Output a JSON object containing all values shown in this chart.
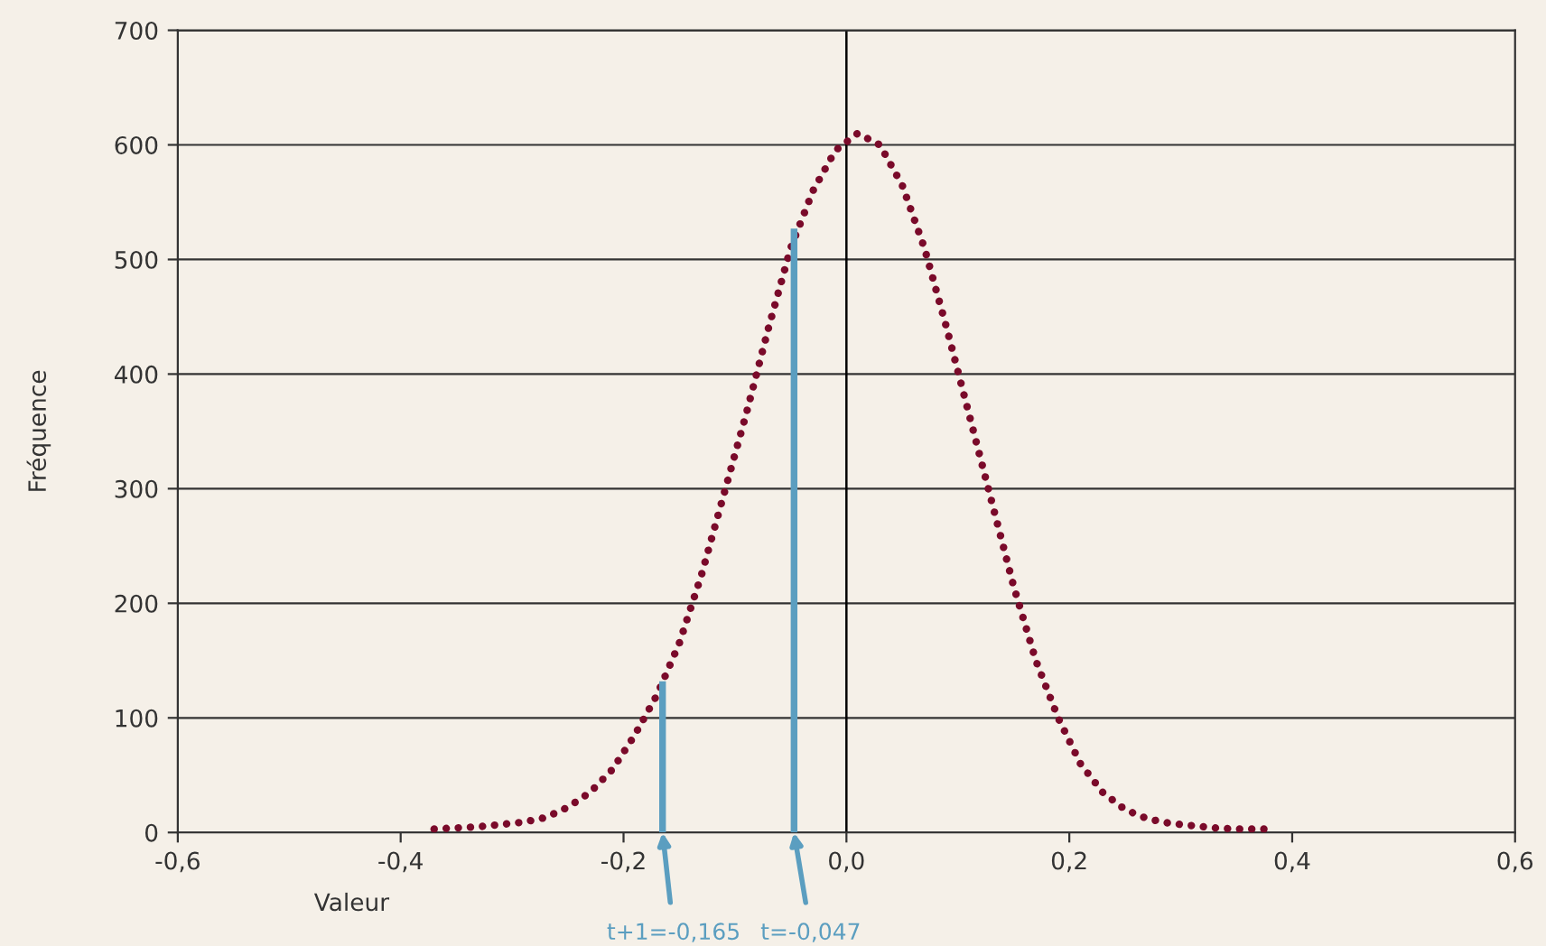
{
  "chart_data": {
    "type": "line",
    "xlabel": "Valeur",
    "ylabel": "Fréquence",
    "xlim": [
      -0.6,
      0.6
    ],
    "ylim": [
      0,
      700
    ],
    "xticks": [
      {
        "value": -0.6,
        "label": "-0,6"
      },
      {
        "value": -0.4,
        "label": "-0,4"
      },
      {
        "value": -0.2,
        "label": "-0,2"
      },
      {
        "value": 0,
        "label": "0,0"
      },
      {
        "value": 0.2,
        "label": "0,2"
      },
      {
        "value": 0.4,
        "label": "0,4"
      },
      {
        "value": 0.6,
        "label": "0,6"
      }
    ],
    "yticks": [
      0,
      100,
      200,
      300,
      400,
      500,
      600,
      700
    ],
    "grid": "y",
    "line_style": "dotted",
    "ref_lines": [
      {
        "axis": "x",
        "value": 0,
        "color": "#000000"
      }
    ],
    "series": [
      {
        "color": "#7a0a2a",
        "x": [
          -0.37,
          -0.35,
          -0.33,
          -0.31,
          -0.29,
          -0.27,
          -0.25,
          -0.23,
          -0.21,
          -0.19,
          -0.17,
          -0.15,
          -0.13,
          -0.11,
          -0.09,
          -0.07,
          -0.05,
          -0.03,
          -0.01,
          0.01,
          0.03,
          0.05,
          0.07,
          0.09,
          0.11,
          0.13,
          0.15,
          0.17,
          0.19,
          0.21,
          0.23,
          0.25,
          0.27,
          0.29,
          0.31,
          0.33,
          0.35,
          0.38
        ],
        "values": [
          3,
          4,
          5,
          7,
          9,
          13,
          22,
          35,
          55,
          85,
          120,
          165,
          225,
          295,
          365,
          440,
          510,
          560,
          595,
          610,
          600,
          565,
          510,
          440,
          365,
          290,
          215,
          150,
          100,
          60,
          35,
          20,
          12,
          8,
          6,
          4,
          3,
          3
        ]
      },
      {
        "type": "bar",
        "color": "#5b9ec0",
        "x": [
          -0.165,
          -0.047
        ],
        "values": [
          132,
          527
        ]
      }
    ],
    "annotations": [
      {
        "text": "t+1=-0,165",
        "x": -0.165,
        "y": 0
      },
      {
        "text": "t=-0,047",
        "x": -0.047,
        "y": 0
      }
    ]
  }
}
